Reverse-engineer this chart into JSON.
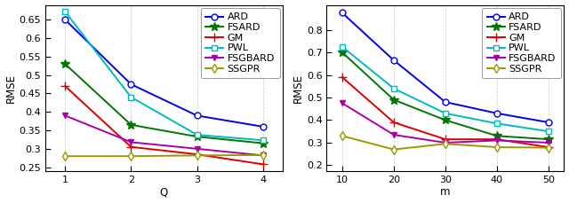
{
  "plot1": {
    "x": [
      1,
      2,
      3,
      4
    ],
    "xlabel": "Q",
    "ylabel": "RMSE",
    "ylim": [
      0.24,
      0.69
    ],
    "yticks": [
      0.25,
      0.3,
      0.35,
      0.4,
      0.45,
      0.5,
      0.55,
      0.6,
      0.65
    ],
    "ytick_labels": [
      "0.25",
      "0.3",
      "0.35",
      "0.4",
      "0.45",
      "0.5",
      "0.55",
      "0.6",
      "0.65"
    ],
    "xticks": [
      1,
      2,
      3,
      4
    ],
    "xlim": [
      0.7,
      4.3
    ],
    "series": {
      "ARD": {
        "values": [
          0.65,
          0.475,
          0.39,
          0.36
        ],
        "color": "#0000EE",
        "marker": "o",
        "markerfacecolor": "white",
        "markersize": 5,
        "lw": 1.4
      },
      "FSARD": {
        "values": [
          0.53,
          0.365,
          0.333,
          0.315
        ],
        "color": "#007700",
        "marker": "*",
        "markerfacecolor": "#007700",
        "markersize": 7,
        "lw": 1.4
      },
      "GM": {
        "values": [
          0.47,
          0.305,
          0.285,
          0.258
        ],
        "color": "#DD0000",
        "marker": "+",
        "markerfacecolor": "#DD0000",
        "markersize": 7,
        "lw": 1.4
      },
      "PWL": {
        "values": [
          0.672,
          0.44,
          0.338,
          0.323
        ],
        "color": "#00BBBB",
        "marker": "s",
        "markerfacecolor": "white",
        "markersize": 5,
        "lw": 1.4
      },
      "FSGBARD": {
        "values": [
          0.39,
          0.318,
          0.3,
          0.282
        ],
        "color": "#AA00AA",
        "marker": "v",
        "markerfacecolor": "#AA00AA",
        "markersize": 5,
        "lw": 1.4
      },
      "SSGPR": {
        "values": [
          0.28,
          0.28,
          0.282,
          0.283
        ],
        "color": "#999900",
        "marker": "d",
        "markerfacecolor": "white",
        "markersize": 5,
        "lw": 1.4
      }
    }
  },
  "plot2": {
    "x": [
      10,
      20,
      30,
      40,
      50
    ],
    "xlabel": "m",
    "ylabel": "RMSE",
    "ylim": [
      0.175,
      0.91
    ],
    "yticks": [
      0.2,
      0.3,
      0.4,
      0.5,
      0.6,
      0.7,
      0.8
    ],
    "ytick_labels": [
      "0.2",
      "0.3",
      "0.4",
      "0.5",
      "0.6",
      "0.7",
      "0.8"
    ],
    "xticks": [
      10,
      20,
      30,
      40,
      50
    ],
    "xlim": [
      7,
      53
    ],
    "series": {
      "ARD": {
        "values": [
          0.875,
          0.665,
          0.48,
          0.43,
          0.39
        ],
        "color": "#0000EE",
        "marker": "o",
        "markerfacecolor": "white",
        "markersize": 5,
        "lw": 1.4
      },
      "FSARD": {
        "values": [
          0.7,
          0.49,
          0.4,
          0.33,
          0.315
        ],
        "color": "#007700",
        "marker": "*",
        "markerfacecolor": "#007700",
        "markersize": 7,
        "lw": 1.4
      },
      "GM": {
        "values": [
          0.59,
          0.39,
          0.315,
          0.315,
          0.28
        ],
        "color": "#DD0000",
        "marker": "+",
        "markerfacecolor": "#DD0000",
        "markersize": 7,
        "lw": 1.4
      },
      "PWL": {
        "values": [
          0.725,
          0.54,
          0.43,
          0.385,
          0.35
        ],
        "color": "#00BBBB",
        "marker": "s",
        "markerfacecolor": "white",
        "markersize": 5,
        "lw": 1.4
      },
      "FSGBARD": {
        "values": [
          0.475,
          0.335,
          0.3,
          0.31,
          0.3
        ],
        "color": "#AA00AA",
        "marker": "v",
        "markerfacecolor": "#AA00AA",
        "markersize": 5,
        "lw": 1.4
      },
      "SSGPR": {
        "values": [
          0.33,
          0.27,
          0.295,
          0.28,
          0.278
        ],
        "color": "#999900",
        "marker": "d",
        "markerfacecolor": "white",
        "markersize": 5,
        "lw": 1.4
      }
    }
  },
  "legend_order": [
    "ARD",
    "FSARD",
    "GM",
    "PWL",
    "FSGBARD",
    "SSGPR"
  ],
  "background_color": "#FFFFFF",
  "fontsize": 8.5,
  "tick_fontsize": 8,
  "legend_fontsize": 8
}
